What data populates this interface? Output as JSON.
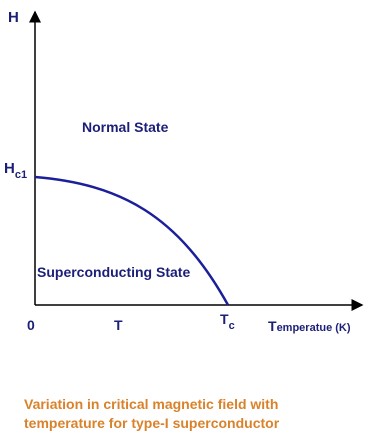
{
  "axes": {
    "y_label": "H",
    "x_label": "Temperatue (K)",
    "origin": "0"
  },
  "labels": {
    "hc1_main": "H",
    "hc1_sub": "c1",
    "t": "T",
    "tc_main": "T",
    "tc_sub": "c",
    "normal": "Normal State",
    "superconducting": "Superconducting State"
  },
  "caption": [
    "Variation in critical magnetic field with",
    "temperature for type-I superconductor"
  ]
}
